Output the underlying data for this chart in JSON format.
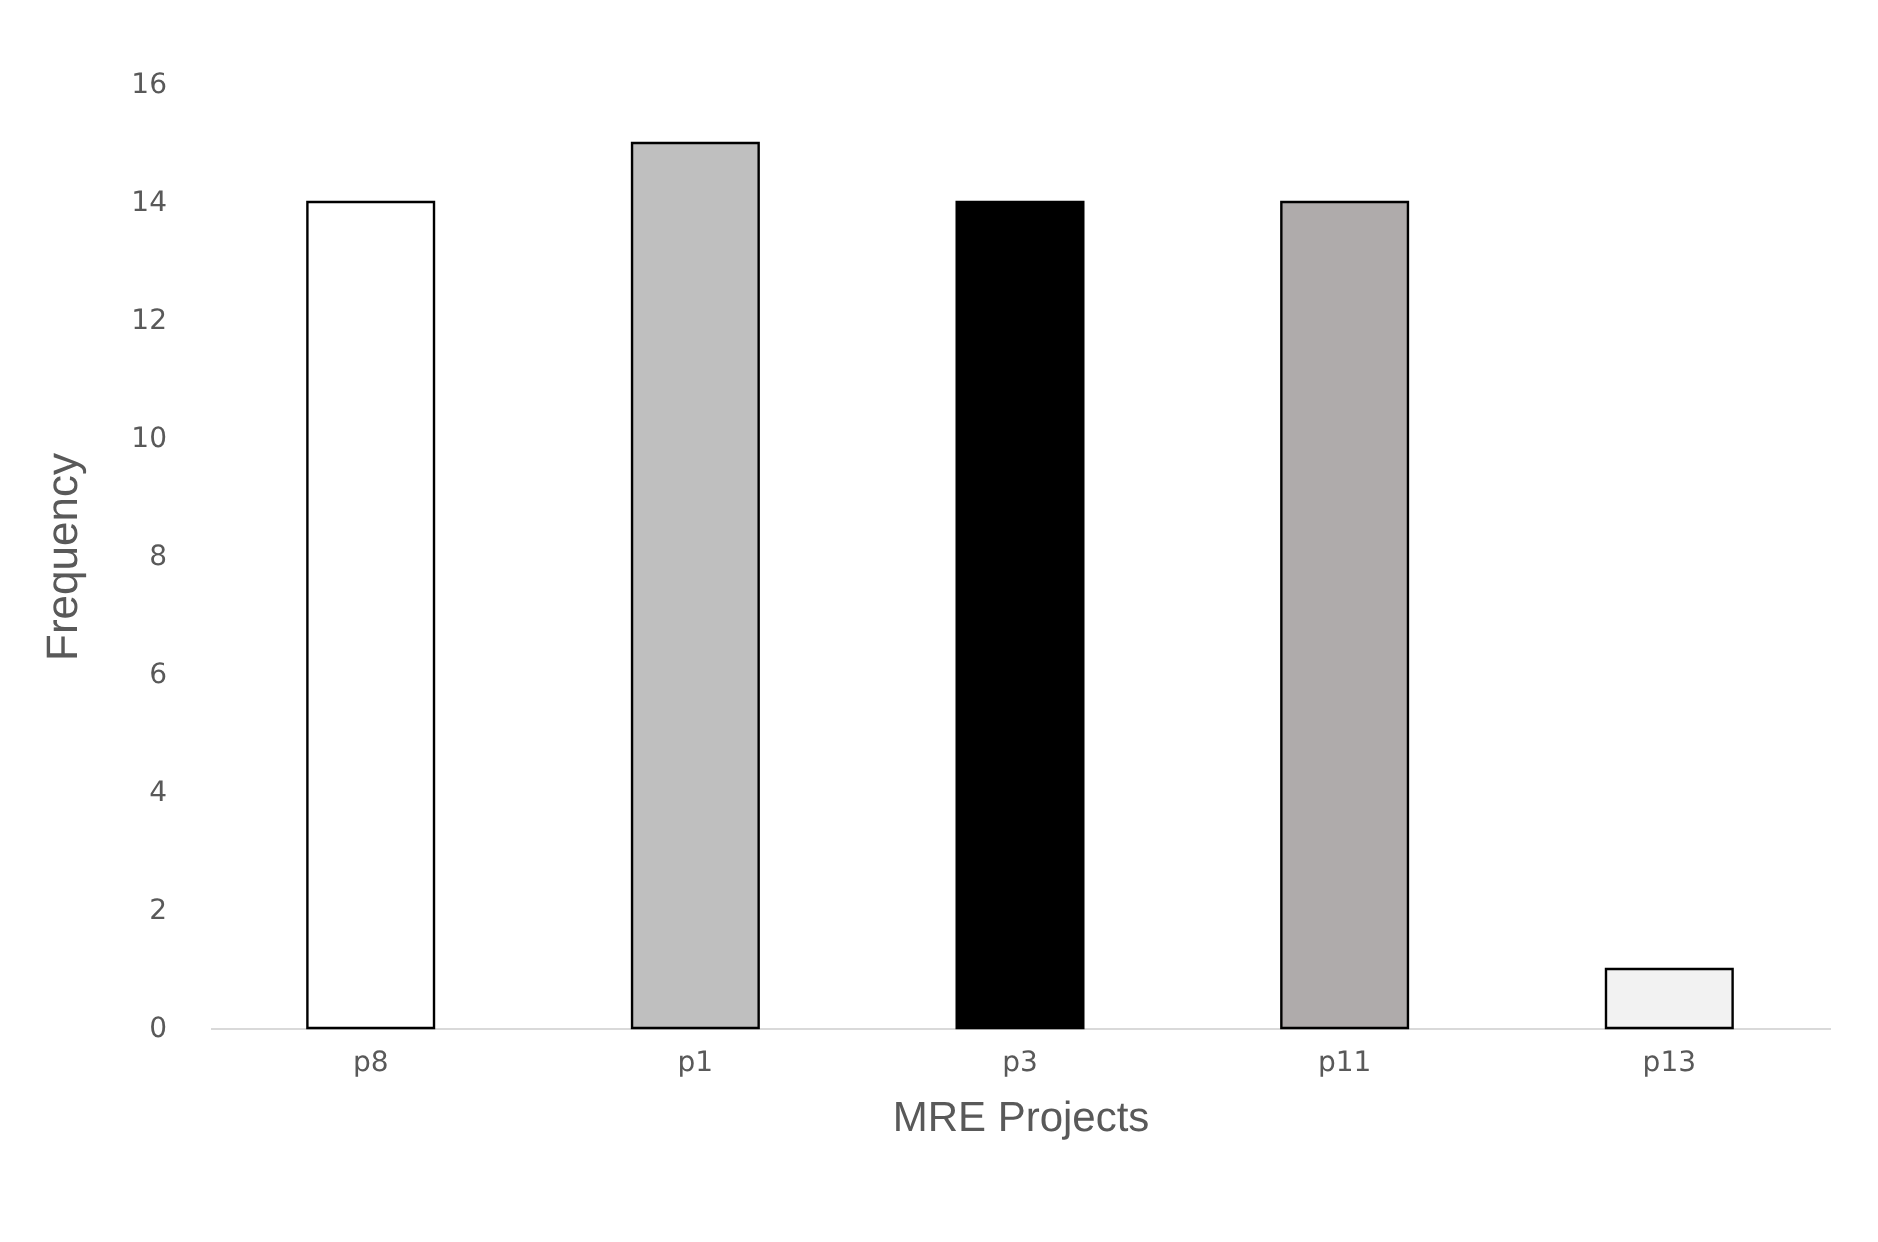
{
  "chart_data": {
    "type": "bar",
    "xlabel": "MRE Projects",
    "ylabel": "Frequency",
    "categories": [
      "p8",
      "p1",
      "p3",
      "p11",
      "p13"
    ],
    "values": [
      14,
      15,
      14,
      14,
      1
    ],
    "colors": [
      "#ffffff",
      "#bfbfbf",
      "#000000",
      "#afabab",
      "#f2f2f2"
    ],
    "ylim": [
      0,
      16
    ],
    "yticks": [
      0,
      2,
      4,
      6,
      8,
      10,
      12,
      14,
      16
    ],
    "grid": false
  }
}
